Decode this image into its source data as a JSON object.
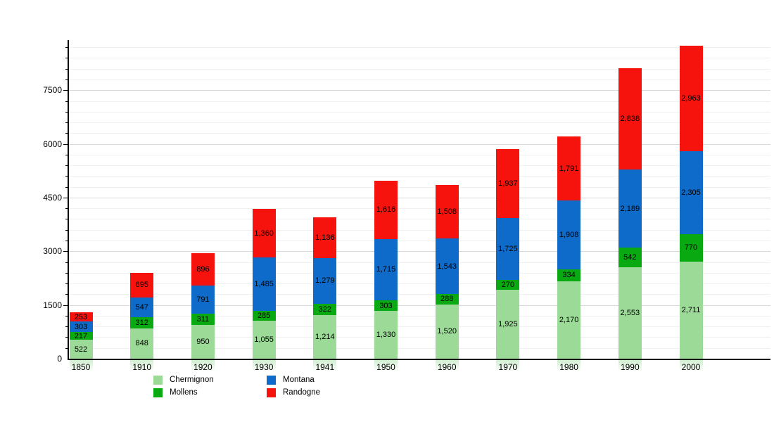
{
  "chart_data": {
    "type": "bar",
    "stacked": true,
    "title": "",
    "xlabel": "",
    "ylabel": "",
    "categories": [
      "1850",
      "1910",
      "1920",
      "1930",
      "1941",
      "1950",
      "1960",
      "1970",
      "1980",
      "1990",
      "2000"
    ],
    "series": [
      {
        "name": "Chermignon",
        "color": "#9bdb97",
        "values": [
          522,
          848,
          950,
          1055,
          1214,
          1330,
          1520,
          1925,
          2170,
          2553,
          2711
        ]
      },
      {
        "name": "Mollens",
        "color": "#09a911",
        "values": [
          217,
          312,
          311,
          285,
          322,
          303,
          288,
          270,
          334,
          542,
          770
        ]
      },
      {
        "name": "Montana",
        "color": "#0e6bc9",
        "values": [
          303,
          547,
          791,
          1485,
          1279,
          1715,
          1543,
          1725,
          1908,
          2189,
          2305
        ]
      },
      {
        "name": "Randogne",
        "color": "#f6130d",
        "values": [
          253,
          695,
          896,
          1360,
          1136,
          1616,
          1508,
          1937,
          1791,
          2838,
          2963
        ]
      }
    ],
    "ylim": [
      0,
      8900
    ],
    "yticks": {
      "labels": [
        "0",
        "1500",
        "3000",
        "4500",
        "6000",
        "7500"
      ],
      "label_step": 1500,
      "minor_step": 300
    },
    "grid": true,
    "legend": {
      "position": "bottom-left",
      "entries": [
        "Chermignon",
        "Mollens",
        "Montana",
        "Randogne"
      ]
    },
    "value_labels": "inside-segments, black, comma thousands separator"
  }
}
